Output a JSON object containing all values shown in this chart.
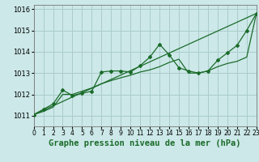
{
  "title": "Graphe pression niveau de la mer (hPa)",
  "bg_color": "#cce8e8",
  "grid_color": "#aacccc",
  "line_color": "#1a6b2a",
  "x_min": 0,
  "x_max": 23,
  "y_min": 1010.5,
  "y_max": 1016.2,
  "y_ticks": [
    1011,
    1012,
    1013,
    1014,
    1015,
    1016
  ],
  "x_ticks": [
    0,
    1,
    2,
    3,
    4,
    5,
    6,
    7,
    8,
    9,
    10,
    11,
    12,
    13,
    14,
    15,
    16,
    17,
    18,
    19,
    20,
    21,
    22,
    23
  ],
  "series1_x": [
    0,
    1,
    2,
    3,
    4,
    5,
    6,
    7,
    8,
    9,
    10,
    11,
    12,
    13,
    14,
    15,
    16,
    17,
    18,
    19,
    20,
    21,
    22,
    23
  ],
  "series1_y": [
    1011.05,
    1011.3,
    1011.55,
    1012.2,
    1011.95,
    1012.05,
    1012.15,
    1013.05,
    1013.1,
    1013.1,
    1013.05,
    1013.35,
    1013.75,
    1014.35,
    1013.85,
    1013.25,
    1013.1,
    1013.0,
    1013.1,
    1013.6,
    1013.95,
    1014.3,
    1015.0,
    1015.8
  ],
  "series2_x": [
    0,
    1,
    2,
    3,
    4,
    5,
    6,
    7,
    8,
    9,
    10,
    11,
    12,
    13,
    14,
    15,
    16,
    17,
    18,
    19,
    20,
    21,
    22,
    23
  ],
  "series2_y": [
    1011.05,
    1011.2,
    1011.4,
    1012.0,
    1012.0,
    1012.15,
    1012.3,
    1012.5,
    1012.65,
    1012.78,
    1012.9,
    1013.05,
    1013.15,
    1013.3,
    1013.5,
    1013.65,
    1013.0,
    1013.0,
    1013.1,
    1013.3,
    1013.45,
    1013.55,
    1013.75,
    1015.8
  ],
  "series3_x": [
    0,
    23
  ],
  "series3_y": [
    1011.05,
    1015.8
  ],
  "title_fontsize": 7.5,
  "tick_fontsize": 5.5,
  "y_tick_fontsize": 6.0
}
